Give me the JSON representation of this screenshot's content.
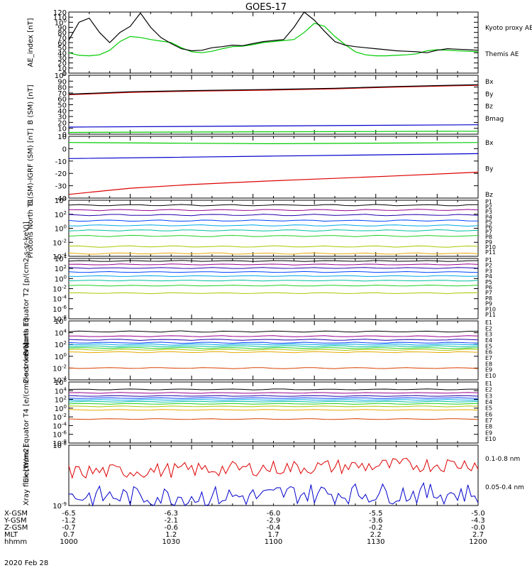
{
  "title": "GOES-17",
  "date_label": "2020 Feb 28",
  "colors": {
    "black": "#000000",
    "red": "#dd0000",
    "green": "#00cc00",
    "blue": "#0000cc",
    "P": [
      "#000000",
      "#9a0090",
      "#2200aa",
      "#0044ff",
      "#00a8e8",
      "#00c0a0",
      "#20d020",
      "#a8c800",
      "#e8a800",
      "#d84000",
      "#b00000"
    ],
    "E": [
      "#000000",
      "#9a0090",
      "#2200aa",
      "#0044ff",
      "#00a8e8",
      "#00c0a0",
      "#20d020",
      "#a8c800",
      "#e8a800",
      "#d84000"
    ]
  },
  "chart_data": [
    {
      "type": "line",
      "ylabel": "AE_index [nT]",
      "ylim": [
        0,
        120
      ],
      "yticks": [
        "0",
        "10",
        "20",
        "30",
        "40",
        "50",
        "60",
        "70",
        "80",
        "90",
        "100",
        "110",
        "120"
      ],
      "series": [
        {
          "name": "Kyoto proxy AE",
          "color": "green",
          "x": [
            1000,
            1005,
            1010,
            1015,
            1020,
            1025,
            1030,
            1035,
            1040,
            1045,
            1050,
            1055,
            1060,
            1065,
            1070,
            1075,
            1080,
            1085,
            1090,
            1095,
            1100,
            1105,
            1110,
            1115,
            1120,
            1125,
            1130,
            1135,
            1140,
            1145,
            1150,
            1155,
            1160,
            1165,
            1170,
            1175,
            1180,
            1185,
            1190,
            1195,
            1200
          ],
          "y": [
            40,
            35,
            34,
            36,
            45,
            62,
            72,
            70,
            66,
            63,
            60,
            50,
            42,
            40,
            43,
            48,
            52,
            53,
            56,
            60,
            62,
            64,
            66,
            80,
            98,
            92,
            72,
            56,
            42,
            36,
            34,
            34,
            35,
            36,
            38,
            44,
            46,
            45,
            44,
            43,
            42
          ]
        },
        {
          "name": "Themis AE",
          "color": "black",
          "x": [
            1000,
            1005,
            1010,
            1015,
            1020,
            1025,
            1030,
            1035,
            1040,
            1045,
            1050,
            1055,
            1060,
            1065,
            1070,
            1075,
            1080,
            1085,
            1090,
            1095,
            1100,
            1105,
            1110,
            1115,
            1120,
            1125,
            1130,
            1135,
            1140,
            1145,
            1150,
            1155,
            1160,
            1165,
            1170,
            1175,
            1180,
            1185,
            1190,
            1195,
            1200
          ],
          "y": [
            65,
            100,
            108,
            80,
            60,
            80,
            92,
            118,
            90,
            70,
            58,
            48,
            44,
            45,
            50,
            52,
            55,
            54,
            58,
            62,
            64,
            66,
            90,
            120,
            104,
            82,
            62,
            55,
            52,
            50,
            48,
            46,
            44,
            43,
            42,
            40,
            45,
            48,
            47,
            46,
            45
          ]
        }
      ]
    },
    {
      "type": "line",
      "ylabel": "B (SM) [nT]",
      "ylim": [
        0,
        100
      ],
      "yticks": [
        "0",
        "10",
        "20",
        "30",
        "40",
        "50",
        "60",
        "70",
        "80",
        "90",
        "100"
      ],
      "series": [
        {
          "name": "Bx",
          "color": "blue",
          "x": [
            1000,
            1200
          ],
          "y": [
            12,
            16
          ]
        },
        {
          "name": "By",
          "color": "green",
          "x": [
            1000,
            1200
          ],
          "y": [
            3,
            5
          ]
        },
        {
          "name": "Bz",
          "color": "red",
          "x": [
            1000,
            1030,
            1060,
            1100,
            1130,
            1160,
            1200
          ],
          "y": [
            67,
            71,
            73,
            75,
            77,
            80,
            83
          ]
        },
        {
          "name": "Bmag",
          "color": "black",
          "x": [
            1000,
            1030,
            1060,
            1100,
            1130,
            1160,
            1200
          ],
          "y": [
            68,
            72,
            74,
            76,
            78,
            81,
            84
          ]
        }
      ]
    },
    {
      "type": "line",
      "ylabel": "B (SM)-IGRF (SM) [nT]",
      "ylim": [
        -40,
        10
      ],
      "yticks": [
        "-40",
        "-30",
        "-20",
        "-10",
        "0",
        "10"
      ],
      "series": [
        {
          "name": "Bx",
          "color": "blue",
          "x": [
            1000,
            1050,
            1100,
            1150,
            1200
          ],
          "y": [
            -8,
            -7,
            -6,
            -5,
            -4
          ]
        },
        {
          "name": "By",
          "color": "green",
          "x": [
            1000,
            1050,
            1100,
            1150,
            1200
          ],
          "y": [
            5,
            4.5,
            4,
            4.5,
            5
          ]
        },
        {
          "name": "Bz",
          "color": "red",
          "x": [
            1000,
            1030,
            1060,
            1100,
            1130,
            1160,
            1200
          ],
          "y": [
            -37,
            -32,
            -29,
            -26,
            -24,
            -22,
            -19
          ]
        }
      ]
    },
    {
      "type": "line",
      "ylabel": "Protons North T1",
      "yscale": "log",
      "ylim": [
        -4,
        4
      ],
      "yticks": [
        "10-4",
        "10-2",
        "100",
        "102",
        "104"
      ],
      "series": [
        {
          "name": "P1",
          "color_index": 0,
          "level": 3.3
        },
        {
          "name": "P2",
          "color_index": 1,
          "level": 2.6
        },
        {
          "name": "P3",
          "color_index": 2,
          "level": 1.9
        },
        {
          "name": "P4",
          "color_index": 3,
          "level": 1.1
        },
        {
          "name": "P5",
          "color_index": 4,
          "level": 0.4
        },
        {
          "name": "P6",
          "color_index": 5,
          "level": -0.3
        },
        {
          "name": "P7",
          "color_index": 6,
          "level": -1.1
        },
        {
          "name": "P8",
          "color_index": 7,
          "level": -2.6
        },
        {
          "name": "P9",
          "color_index": 8,
          "level": -3.6
        },
        {
          "name": "P10",
          "color_index": 9,
          "level": null
        },
        {
          "name": "P11",
          "color_index": 10,
          "level": null
        }
      ]
    },
    {
      "type": "line",
      "ylabel": "Protons Equator T2 [p/(cm2-s-sr-keV)]",
      "yscale": "log",
      "ylim": [
        -8,
        4
      ],
      "yticks": [
        "10-8",
        "10-6",
        "10-4",
        "10-2",
        "100",
        "102",
        "104"
      ],
      "series": [
        {
          "name": "P1",
          "color_index": 0,
          "level": 3.5
        },
        {
          "name": "P2",
          "color_index": 1,
          "level": 2.8
        },
        {
          "name": "P3",
          "color_index": 2,
          "level": 2.1
        },
        {
          "name": "P4",
          "color_index": 3,
          "level": 1.3
        },
        {
          "name": "P5",
          "color_index": 4,
          "level": 0.5
        },
        {
          "name": "P6",
          "color_index": 5,
          "level": -0.4
        },
        {
          "name": "P7",
          "color_index": 6,
          "level": -1.4
        },
        {
          "name": "P8",
          "color_index": 7,
          "level": -2.9
        },
        {
          "name": "P9",
          "color_index": 8,
          "level": null
        },
        {
          "name": "P10",
          "color_index": 9,
          "level": null
        },
        {
          "name": "P11",
          "color_index": 10,
          "level": null
        }
      ]
    },
    {
      "type": "line",
      "ylabel": "Electrons North T3",
      "yscale": "log",
      "ylim": [
        -4,
        6
      ],
      "yticks": [
        "10-4",
        "10-2",
        "100",
        "102",
        "104",
        "106"
      ],
      "series": [
        {
          "name": "E1",
          "color_index": 0,
          "level": 4.2
        },
        {
          "name": "E2",
          "color_index": 1,
          "level": 3.4
        },
        {
          "name": "E3",
          "color_index": 2,
          "level": 2.8
        },
        {
          "name": "E4",
          "color_index": 3,
          "level": 2.3
        },
        {
          "name": "E5",
          "color_index": 4,
          "level": 2.0
        },
        {
          "name": "E6",
          "color_index": 5,
          "level": 1.7
        },
        {
          "name": "E7",
          "color_index": 6,
          "level": 1.4
        },
        {
          "name": "E8",
          "color_index": 7,
          "level": 1.1
        },
        {
          "name": "E9",
          "color_index": 8,
          "level": 0.7
        },
        {
          "name": "E10",
          "color_index": 9,
          "level": -2.0
        }
      ]
    },
    {
      "type": "line",
      "ylabel": "Electrons Equator T4 [e/(cm2-s-sr-keV)]",
      "yscale": "log",
      "ylim": [
        -8,
        6
      ],
      "yticks": [
        "10-8",
        "10-6",
        "10-4",
        "10-2",
        "100",
        "102",
        "104",
        "106"
      ],
      "series": [
        {
          "name": "E1",
          "color_index": 0,
          "level": 4.3
        },
        {
          "name": "E2",
          "color_index": 1,
          "level": 3.5
        },
        {
          "name": "E3",
          "color_index": 2,
          "level": 2.8
        },
        {
          "name": "E4",
          "color_index": 3,
          "level": 2.3
        },
        {
          "name": "E5",
          "color_index": 4,
          "level": 1.9
        },
        {
          "name": "E6",
          "color_index": 5,
          "level": 1.5
        },
        {
          "name": "E7",
          "color_index": 6,
          "level": 1.0
        },
        {
          "name": "E8",
          "color_index": 7,
          "level": 0.4
        },
        {
          "name": "E9",
          "color_index": 8,
          "level": -0.4
        },
        {
          "name": "E10",
          "color_index": 9,
          "level": -2.5
        }
      ]
    },
    {
      "type": "line",
      "ylabel": "Xray flux [W/m2]",
      "yscale": "log",
      "ylim": [
        -9,
        -8
      ],
      "yticks": [
        "10-9",
        "10-8"
      ],
      "series": [
        {
          "name": "0.1-0.8 nm",
          "color": "red"
        },
        {
          "name": "0.05-0.4 nm",
          "color": "blue"
        }
      ]
    }
  ],
  "x_axis": {
    "xlim": [
      1000,
      1200
    ],
    "row_labels": [
      "X-GSM",
      "Y-GSM",
      "Z-GSM",
      "MLT",
      "hhmm"
    ],
    "columns": [
      {
        "values": [
          "-6.5",
          "-1.2",
          "-0.7",
          "0.7",
          "1000"
        ]
      },
      {
        "values": [
          "-6.3",
          "-2.1",
          "-0.6",
          "1.2",
          "1030"
        ]
      },
      {
        "values": [
          "-6.0",
          "-2.9",
          "-0.4",
          "1.7",
          "1100"
        ]
      },
      {
        "values": [
          "-5.5",
          "-3.6",
          "-0.2",
          "2.2",
          "1130"
        ]
      },
      {
        "values": [
          "-5.0",
          "-4.3",
          "-0.0",
          "2.7",
          "1200"
        ]
      }
    ]
  }
}
